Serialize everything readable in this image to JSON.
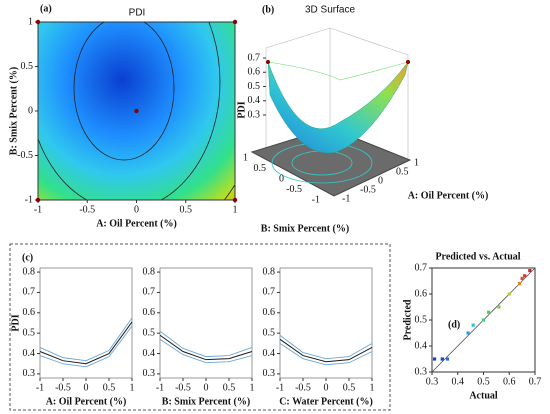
{
  "chart_data": [
    {
      "type": "contour",
      "panel": "(a)",
      "title": "PDI",
      "xlabel": "A: Oil Percent (%)",
      "ylabel": "B: Smix Percent (%)",
      "xlim": [
        -1,
        1
      ],
      "ylim": [
        -1,
        1
      ],
      "xticks": [
        -1,
        -0.5,
        0,
        0.5,
        1
      ],
      "yticks": [
        -1,
        -0.5,
        0,
        0.5,
        1
      ],
      "x": [
        -1,
        1,
        1,
        -1,
        0
      ],
      "y": [
        1,
        1,
        -1,
        -1,
        0
      ],
      "color": "#8b0000"
    },
    {
      "type": "surface",
      "panel": "(b)",
      "title": "3D Surface",
      "zlabel": "PDI",
      "xlabel": "A: Oil Percent (%)",
      "ylabel": "B: Smix Percent (%)",
      "xlim": [
        -1,
        1
      ],
      "ylim": [
        -1,
        1
      ],
      "zlim": [
        0.3,
        0.7
      ],
      "xticks": [
        -1,
        -0.5,
        0,
        0.5,
        1
      ],
      "yticks": [
        1,
        0.5,
        0,
        -0.5,
        -1
      ],
      "zticks": [
        0.3,
        0.4,
        0.5,
        0.6,
        0.7
      ]
    },
    {
      "type": "line",
      "panel": "(c)",
      "ylabel": "PDI",
      "xlabel": "A: Oil Percent (%)",
      "xlim": [
        -1,
        1
      ],
      "ylim": [
        0.28,
        0.82
      ],
      "xticks": [
        -1,
        -0.5,
        0,
        0.5,
        1
      ],
      "yticks": [
        0.3,
        0.4,
        0.5,
        0.6,
        0.7,
        0.8
      ],
      "x": [
        -1,
        -0.5,
        0,
        0.5,
        1
      ],
      "values": [
        0.41,
        0.365,
        0.35,
        0.4,
        0.555
      ],
      "upper": [
        0.43,
        0.38,
        0.365,
        0.415,
        0.575
      ],
      "lower": [
        0.39,
        0.35,
        0.335,
        0.385,
        0.535
      ],
      "color": "#1a1a1a"
    },
    {
      "type": "line",
      "xlabel": "B: Smix Percent (%)",
      "xlim": [
        -1,
        1
      ],
      "ylim": [
        0.28,
        0.82
      ],
      "xticks": [
        -1,
        -0.5,
        0,
        0.5,
        1
      ],
      "yticks": [
        0.3,
        0.4,
        0.5,
        0.6,
        0.7,
        0.8
      ],
      "x": [
        -1,
        -0.5,
        0,
        0.5,
        1
      ],
      "values": [
        0.49,
        0.41,
        0.37,
        0.375,
        0.41
      ],
      "upper": [
        0.51,
        0.425,
        0.385,
        0.39,
        0.43
      ],
      "lower": [
        0.47,
        0.395,
        0.355,
        0.36,
        0.39
      ],
      "color": "#1a1a1a"
    },
    {
      "type": "line",
      "xlabel": "C: Water Percent (%)",
      "xlim": [
        -1,
        1
      ],
      "ylim": [
        0.28,
        0.82
      ],
      "xticks": [
        -1,
        -0.5,
        0,
        0.5,
        1
      ],
      "yticks": [
        0.3,
        0.4,
        0.5,
        0.6,
        0.7,
        0.8
      ],
      "x": [
        -1,
        -0.5,
        0,
        0.5,
        1
      ],
      "values": [
        0.47,
        0.39,
        0.36,
        0.37,
        0.43
      ],
      "upper": [
        0.49,
        0.405,
        0.375,
        0.385,
        0.45
      ],
      "lower": [
        0.45,
        0.375,
        0.345,
        0.355,
        0.41
      ],
      "color": "#1a1a1a"
    },
    {
      "type": "scatter",
      "panel": "(d)",
      "title": "Predicted vs. Actual",
      "xlabel": "Actual",
      "ylabel": "Predicted",
      "xlim": [
        0.3,
        0.7
      ],
      "ylim": [
        0.3,
        0.7
      ],
      "xticks": [
        0.3,
        0.4,
        0.5,
        0.6,
        0.7
      ],
      "yticks": [
        0.3,
        0.4,
        0.5,
        0.6,
        0.7
      ],
      "x": [
        0.31,
        0.34,
        0.36,
        0.44,
        0.46,
        0.5,
        0.52,
        0.56,
        0.6,
        0.64,
        0.65,
        0.66,
        0.68
      ],
      "values": [
        0.35,
        0.35,
        0.35,
        0.45,
        0.48,
        0.5,
        0.53,
        0.55,
        0.6,
        0.64,
        0.66,
        0.67,
        0.69
      ],
      "colors": [
        "#1f3fd0",
        "#1f3fd0",
        "#2a6fe0",
        "#2a9ae0",
        "#30c0d0",
        "#40d080",
        "#50d050",
        "#80d040",
        "#b0d030",
        "#e08030",
        "#e05030",
        "#e03030",
        "#d02020"
      ]
    }
  ]
}
